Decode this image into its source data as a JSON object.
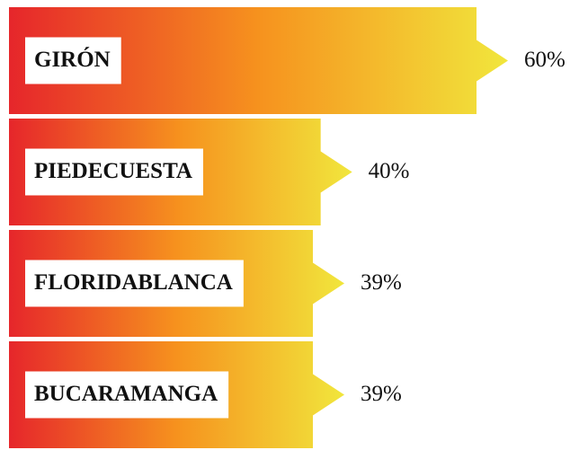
{
  "chart_data": {
    "type": "bar",
    "orientation": "horizontal",
    "categories": [
      "GIRÓN",
      "PIEDECUESTA",
      "FLORIDABLANCA",
      "BUCARAMANGA"
    ],
    "values": [
      60,
      40,
      39,
      39
    ],
    "value_labels": [
      "60%",
      "40%",
      "39%",
      "39%"
    ],
    "gradient_colors": [
      "#e6262b",
      "#f6921e",
      "#f1e63c"
    ]
  }
}
